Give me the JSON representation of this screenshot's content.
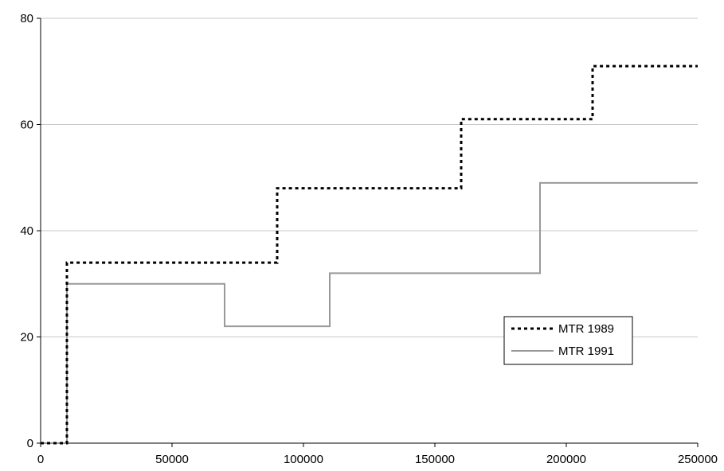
{
  "chart_data": {
    "type": "line",
    "title": "",
    "xlabel": "",
    "ylabel": "",
    "xlim": [
      0,
      250000
    ],
    "ylim": [
      0,
      80
    ],
    "x_ticks": [
      0,
      50000,
      100000,
      150000,
      200000,
      250000
    ],
    "y_ticks": [
      0,
      20,
      40,
      60,
      80
    ],
    "grid": "horizontal",
    "legend_position": "right",
    "series": [
      {
        "name": "MTR 1989",
        "style": "dotted",
        "color": "#000000",
        "points": [
          [
            0,
            0
          ],
          [
            10000,
            0
          ],
          [
            10000,
            34
          ],
          [
            90000,
            34
          ],
          [
            90000,
            48
          ],
          [
            160000,
            48
          ],
          [
            160000,
            61
          ],
          [
            210000,
            61
          ],
          [
            210000,
            71
          ],
          [
            250000,
            71
          ]
        ]
      },
      {
        "name": "MTR 1991",
        "style": "solid",
        "color": "#999999",
        "points": [
          [
            0,
            0
          ],
          [
            10000,
            0
          ],
          [
            10000,
            30
          ],
          [
            70000,
            30
          ],
          [
            70000,
            22
          ],
          [
            110000,
            22
          ],
          [
            110000,
            32
          ],
          [
            190000,
            32
          ],
          [
            190000,
            49
          ],
          [
            250000,
            49
          ]
        ]
      }
    ]
  }
}
